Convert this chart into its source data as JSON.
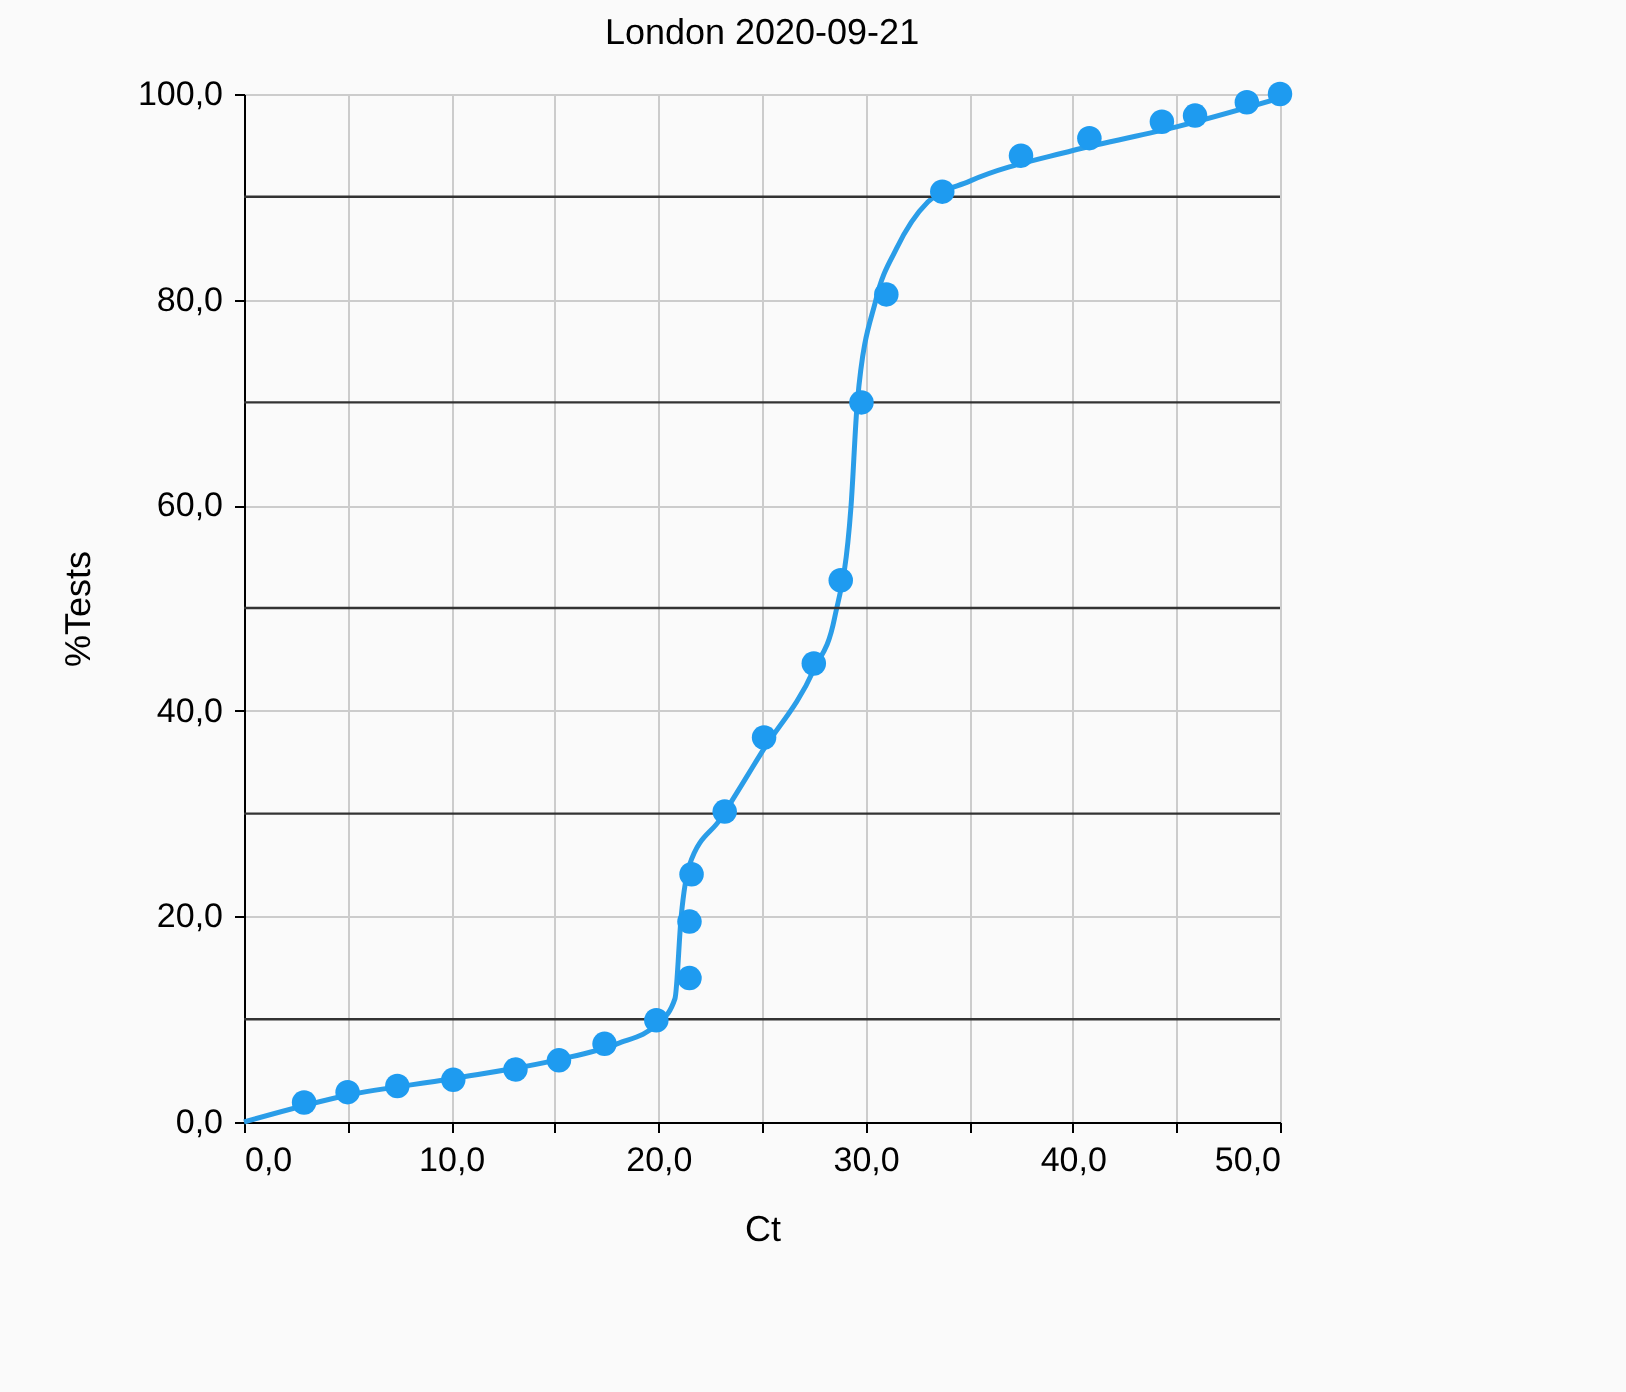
{
  "chart_data": {
    "type": "scatter",
    "title": "London 2020-09-21",
    "xlabel": "Ct",
    "ylabel": "%Tests",
    "series": [
      {
        "color": "#1e9bf0",
        "marker": "circle",
        "x": [
          2.9,
          5.0,
          7.4,
          10.1,
          13.1,
          15.2,
          17.4,
          19.9,
          21.5,
          21.5,
          21.6,
          23.2,
          25.1,
          27.5,
          28.8,
          29.8,
          31.0,
          33.7,
          37.5,
          40.8,
          44.3,
          45.9,
          48.4,
          50.0
        ],
        "values": [
          1.9,
          2.9,
          3.5,
          4.1,
          5.1,
          6.0,
          7.6,
          9.9,
          14.0,
          19.5,
          24.1,
          30.2,
          37.4,
          44.6,
          52.7,
          70.0,
          80.5,
          90.5,
          94.0,
          95.7,
          97.3,
          97.9,
          99.2,
          100.0
        ]
      },
      {
        "type": "line",
        "color": "#2a9de8",
        "marker": "none",
        "x": [
          0,
          5,
          10,
          15,
          18,
          20,
          20.8,
          21.1,
          21.5,
          23,
          25,
          27.5,
          28.5,
          29.3,
          29.6,
          30.5,
          31.5,
          33,
          35,
          40,
          45,
          50
        ],
        "values": [
          0,
          2.6,
          4.2,
          6.0,
          7.6,
          9.6,
          12,
          20,
          25,
          29.5,
          36,
          44,
          49,
          60,
          70,
          80,
          85,
          89.5,
          91.5,
          94.5,
          96.8,
          99.6
        ]
      }
    ],
    "xlim": [
      0,
      50
    ],
    "ylim": [
      0,
      100
    ],
    "xticks": [
      {
        "value": 0,
        "label": "0,0"
      },
      {
        "value": 5,
        "label": null
      },
      {
        "value": 10,
        "label": "10,0"
      },
      {
        "value": 15,
        "label": null
      },
      {
        "value": 20,
        "label": "20,0"
      },
      {
        "value": 25,
        "label": null
      },
      {
        "value": 30,
        "label": "30,0"
      },
      {
        "value": 35,
        "label": null
      },
      {
        "value": 40,
        "label": "40,0"
      },
      {
        "value": 45,
        "label": null
      },
      {
        "value": 50,
        "label": "50,0"
      }
    ],
    "yticks": [
      {
        "value": 0,
        "label": "0,0"
      },
      {
        "value": 20,
        "label": "20,0"
      },
      {
        "value": 40,
        "label": "40,0"
      },
      {
        "value": 60,
        "label": "60,0"
      },
      {
        "value": 80,
        "label": "80,0"
      },
      {
        "value": 100,
        "label": "100,0"
      }
    ],
    "ref_lines": [
      {
        "axis": "y",
        "value": 10,
        "color": "#333333"
      },
      {
        "axis": "y",
        "value": 30,
        "color": "#333333"
      },
      {
        "axis": "y",
        "value": 50,
        "color": "#333333"
      },
      {
        "axis": "y",
        "value": 70,
        "color": "#333333"
      },
      {
        "axis": "y",
        "value": 90,
        "color": "#333333"
      }
    ],
    "grid": true
  }
}
